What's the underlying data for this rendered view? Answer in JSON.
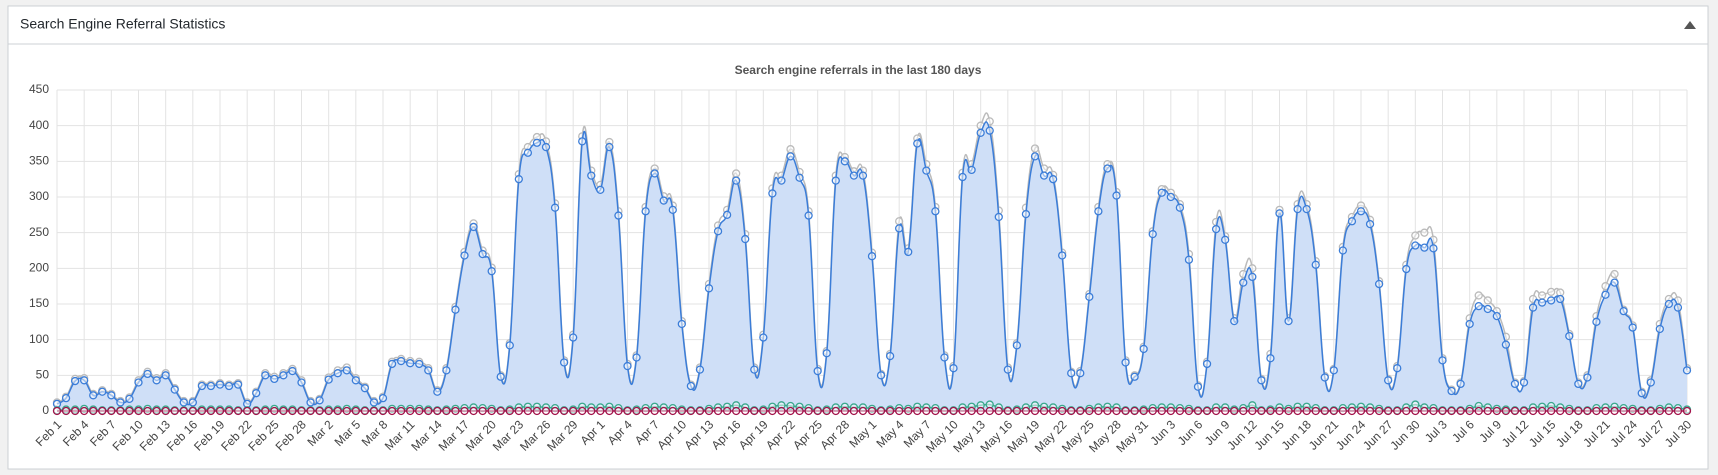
{
  "header": {
    "title": "Search Engine Referral Statistics"
  },
  "chart_data": {
    "type": "line",
    "title": "Search engine referrals in the last 180 days",
    "categories": [
      "Feb 1",
      null,
      null,
      "Feb 4",
      null,
      null,
      "Feb 7",
      null,
      null,
      "Feb 10",
      null,
      null,
      "Feb 13",
      null,
      null,
      "Feb 16",
      null,
      null,
      "Feb 19",
      null,
      null,
      "Feb 22",
      null,
      null,
      "Feb 25",
      null,
      null,
      "Feb 28",
      null,
      null,
      "Mar 2",
      null,
      null,
      "Mar 5",
      null,
      null,
      "Mar 8",
      null,
      null,
      "Mar 11",
      null,
      null,
      "Mar 14",
      null,
      null,
      "Mar 17",
      null,
      null,
      "Mar 20",
      null,
      null,
      "Mar 23",
      null,
      null,
      "Mar 26",
      null,
      null,
      "Mar 29",
      null,
      null,
      "Apr 1",
      null,
      null,
      "Apr 4",
      null,
      null,
      "Apr 7",
      null,
      null,
      "Apr 10",
      null,
      null,
      "Apr 13",
      null,
      null,
      "Apr 16",
      null,
      null,
      "Apr 19",
      null,
      null,
      "Apr 22",
      null,
      null,
      "Apr 25",
      null,
      null,
      "Apr 28",
      null,
      null,
      "May 1",
      null,
      null,
      "May 4",
      null,
      null,
      "May 7",
      null,
      null,
      "May 10",
      null,
      null,
      "May 13",
      null,
      null,
      "May 16",
      null,
      null,
      "May 19",
      null,
      null,
      "May 22",
      null,
      null,
      "May 25",
      null,
      null,
      "May 28",
      null,
      null,
      "May 31",
      null,
      null,
      "Jun 3",
      null,
      null,
      "Jun 6",
      null,
      null,
      "Jun 9",
      null,
      null,
      "Jun 12",
      null,
      null,
      "Jun 15",
      null,
      null,
      "Jun 18",
      null,
      null,
      "Jun 21",
      null,
      null,
      "Jun 24",
      null,
      null,
      "Jun 27",
      null,
      null,
      "Jun 30",
      null,
      null,
      "Jul 3",
      null,
      null,
      "Jul 6",
      null,
      null,
      "Jul 9",
      null,
      null,
      "Jul 12",
      null,
      null,
      "Jul 15",
      null,
      null,
      "Jul 18",
      null,
      null,
      "Jul 21",
      null,
      null,
      "Jul 24",
      null,
      null,
      "Jul 27",
      null,
      null,
      "Jul 30"
    ],
    "series": [
      {
        "color": "#bbbbbb",
        "values": [
          12,
          20,
          45,
          46,
          24,
          29,
          24,
          14,
          19,
          43,
          55,
          46,
          53,
          32,
          14,
          14,
          37,
          37,
          39,
          37,
          39,
          12,
          27,
          53,
          48,
          53,
          59,
          43,
          14,
          17,
          47,
          57,
          61,
          46,
          34,
          14,
          20,
          69,
          73,
          70,
          69,
          60,
          29,
          60,
          146,
          223,
          263,
          225,
          201,
          50,
          95,
          332,
          370,
          384,
          378,
          291,
          71,
          107,
          385,
          337,
          317,
          377,
          280,
          66,
          78,
          286,
          340,
          301,
          288,
          126,
          37,
          61,
          178,
          260,
          282,
          333,
          248,
          61,
          107,
          312,
          330,
          367,
          335,
          280,
          59,
          84,
          330,
          356,
          336,
          337,
          222,
          52,
          80,
          266,
          228,
          382,
          346,
          286,
          78,
          63,
          334,
          346,
          400,
          406,
          281,
          61,
          95,
          285,
          368,
          340,
          331,
          222,
          55,
          56,
          164,
          286,
          346,
          307,
          71,
          50,
          90,
          252,
          311,
          306,
          290,
          220,
          36,
          69,
          265,
          245,
          130,
          192,
          200,
          45,
          80,
          282,
          130,
          290,
          290,
          210,
          49,
          59,
          230,
          272,
          288,
          268,
          182,
          45,
          63,
          205,
          246,
          250,
          240,
          74,
          30,
          40,
          130,
          162,
          155,
          140,
          104,
          40,
          42,
          157,
          162,
          167,
          166,
          108,
          40,
          50,
          133,
          175,
          192,
          142,
          120,
          27,
          43,
          122,
          157,
          155,
          60
        ]
      },
      {
        "color": "#3b7dd8",
        "fill": "#cfdff7",
        "values": [
          10,
          18,
          42,
          43,
          22,
          27,
          22,
          12,
          17,
          40,
          52,
          43,
          50,
          30,
          12,
          12,
          35,
          35,
          37,
          35,
          37,
          10,
          25,
          50,
          45,
          50,
          56,
          40,
          12,
          15,
          44,
          53,
          57,
          43,
          32,
          12,
          18,
          66,
          70,
          67,
          66,
          57,
          27,
          57,
          142,
          218,
          258,
          220,
          196,
          48,
          92,
          325,
          362,
          376,
          370,
          285,
          68,
          103,
          378,
          330,
          310,
          370,
          274,
          63,
          75,
          280,
          333,
          295,
          282,
          122,
          35,
          58,
          172,
          252,
          275,
          323,
          241,
          58,
          103,
          305,
          323,
          357,
          327,
          274,
          56,
          81,
          323,
          350,
          330,
          330,
          217,
          50,
          77,
          256,
          223,
          375,
          337,
          280,
          75,
          60,
          328,
          338,
          390,
          393,
          272,
          58,
          92,
          276,
          357,
          330,
          325,
          218,
          53,
          53,
          160,
          280,
          340,
          302,
          68,
          48,
          87,
          248,
          306,
          300,
          285,
          212,
          34,
          66,
          255,
          240,
          126,
          180,
          188,
          43,
          74,
          277,
          126,
          283,
          283,
          205,
          47,
          57,
          225,
          266,
          280,
          262,
          178,
          43,
          60,
          199,
          232,
          229,
          228,
          71,
          28,
          38,
          122,
          147,
          143,
          133,
          93,
          38,
          40,
          145,
          152,
          155,
          157,
          105,
          38,
          47,
          125,
          163,
          180,
          140,
          117,
          25,
          40,
          115,
          150,
          145,
          57
        ]
      },
      {
        "color": "#3aa88c",
        "values": [
          1,
          2,
          2,
          3,
          2,
          1,
          1,
          1,
          2,
          2,
          3,
          2,
          2,
          1,
          1,
          1,
          2,
          2,
          2,
          2,
          1,
          1,
          1,
          2,
          3,
          2,
          2,
          1,
          1,
          1,
          2,
          2,
          3,
          2,
          1,
          1,
          1,
          3,
          3,
          3,
          3,
          2,
          1,
          2,
          3,
          4,
          5,
          4,
          3,
          1,
          2,
          5,
          6,
          6,
          5,
          4,
          1,
          2,
          6,
          5,
          5,
          6,
          4,
          1,
          2,
          4,
          6,
          5,
          4,
          2,
          1,
          1,
          3,
          5,
          6,
          8,
          5,
          1,
          2,
          6,
          8,
          7,
          6,
          4,
          1,
          2,
          5,
          6,
          5,
          5,
          3,
          1,
          2,
          4,
          3,
          6,
          5,
          4,
          1,
          1,
          5,
          6,
          8,
          9,
          5,
          1,
          2,
          5,
          8,
          6,
          5,
          3,
          1,
          1,
          3,
          5,
          6,
          5,
          1,
          1,
          2,
          4,
          5,
          5,
          4,
          3,
          1,
          1,
          5,
          5,
          2,
          4,
          8,
          1,
          2,
          5,
          3,
          6,
          6,
          4,
          1,
          1,
          4,
          5,
          6,
          5,
          3,
          1,
          1,
          5,
          9,
          5,
          4,
          1,
          1,
          1,
          3,
          7,
          5,
          3,
          2,
          1,
          1,
          5,
          6,
          7,
          5,
          3,
          1,
          1,
          4,
          5,
          6,
          4,
          3,
          1,
          1,
          3,
          5,
          4,
          2
        ]
      },
      {
        "color": "#a2124a",
        "values": [
          0,
          0,
          0,
          0,
          0,
          0,
          0,
          0,
          0,
          0,
          0,
          0,
          0,
          0,
          0,
          0,
          0,
          0,
          0,
          0,
          0,
          0,
          0,
          0,
          0,
          0,
          0,
          0,
          0,
          0,
          0,
          0,
          0,
          0,
          0,
          0,
          0,
          0,
          0,
          0,
          0,
          0,
          0,
          0,
          0,
          0,
          0,
          0,
          0,
          0,
          0,
          0,
          0,
          0,
          0,
          0,
          0,
          0,
          0,
          0,
          0,
          0,
          0,
          0,
          0,
          0,
          0,
          0,
          0,
          0,
          0,
          0,
          0,
          0,
          0,
          0,
          0,
          0,
          0,
          0,
          0,
          0,
          0,
          0,
          0,
          0,
          0,
          0,
          0,
          0,
          0,
          0,
          0,
          0,
          0,
          0,
          0,
          0,
          0,
          0,
          0,
          0,
          0,
          0,
          0,
          0,
          0,
          0,
          0,
          0,
          0,
          0,
          0,
          0,
          0,
          0,
          0,
          0,
          0,
          0,
          0,
          0,
          0,
          0,
          0,
          0,
          0,
          0,
          0,
          0,
          0,
          0,
          0,
          0,
          0,
          0,
          0,
          0,
          0,
          0,
          0,
          0,
          0,
          0,
          0,
          0,
          0,
          0,
          0,
          0,
          0,
          0,
          0,
          0,
          0,
          0,
          0,
          0,
          0,
          0,
          0,
          0,
          0,
          0,
          0,
          0,
          0,
          0,
          0,
          0,
          0,
          0,
          0,
          0,
          0,
          0,
          0,
          0,
          0,
          0,
          0
        ]
      }
    ],
    "ylim": [
      0,
      450
    ],
    "yticks": [
      0,
      50,
      100,
      150,
      200,
      250,
      300,
      350,
      400,
      450
    ],
    "grid": true
  }
}
